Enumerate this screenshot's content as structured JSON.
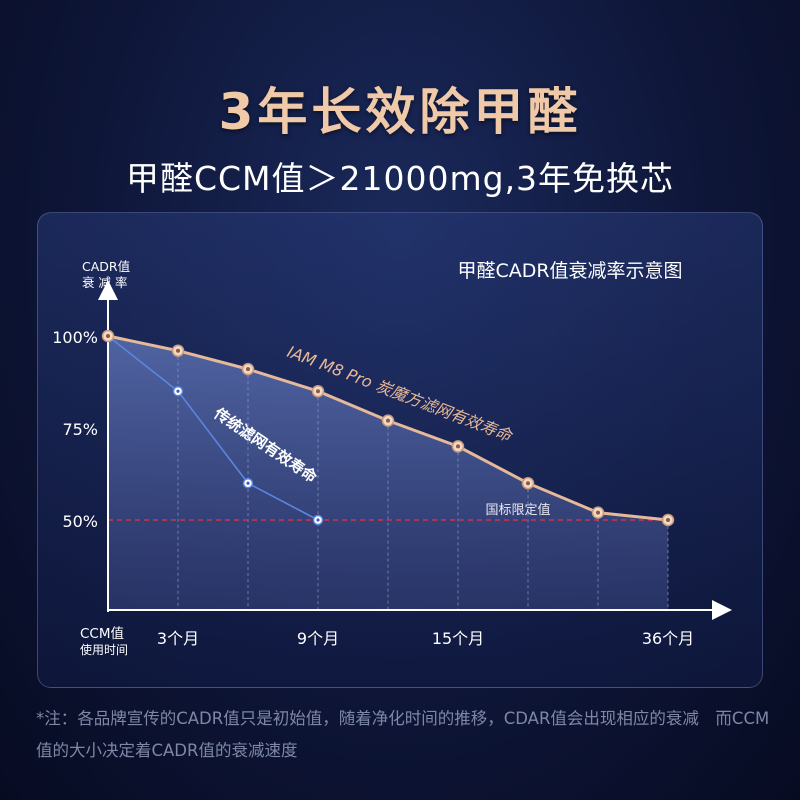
{
  "header": {
    "title": "3年长效除甲醛",
    "subtitle": "甲醛CCM值＞21000mg,3年免换芯"
  },
  "footnote": "*注：各品牌宣传的CADR值只是初始值，随着净化时间的推移，CDAR值会出现相应的衰减　而CCM值的大小决定着CADR值的衰减速度",
  "chart_data": {
    "type": "line",
    "title": "甲醛CADR值衰减率示意图",
    "ylabel": [
      "CADR值",
      "衰 减 率"
    ],
    "xlabel": [
      "CCM值",
      "使用时间"
    ],
    "ylim": [
      0,
      100
    ],
    "y_ticks": [
      {
        "value": 100,
        "label": "100%"
      },
      {
        "value": 75,
        "label": "75%"
      },
      {
        "value": 50,
        "label": "50%"
      }
    ],
    "x_ticks": [
      {
        "value": 1,
        "label": "3个月"
      },
      {
        "value": 3,
        "label": "9个月"
      },
      {
        "value": 5,
        "label": "15个月"
      },
      {
        "value": 8,
        "label": "36个月"
      }
    ],
    "series": [
      {
        "name": "IAM M8 Pro 炭魔方滤网有效寿命",
        "color": "#e5b99a",
        "x": [
          0,
          1,
          2,
          3,
          4,
          5,
          6,
          7,
          8
        ],
        "y": [
          100,
          96,
          91,
          85,
          77,
          70,
          60,
          52,
          50
        ]
      },
      {
        "name": "传统滤网有效寿命",
        "color": "#5b86e0",
        "x": [
          0,
          1,
          2,
          3
        ],
        "y": [
          100,
          85,
          60,
          50
        ]
      }
    ],
    "reference_line": {
      "value": 50,
      "label": "国标限定值",
      "color": "#d0324a"
    },
    "grid": false
  }
}
